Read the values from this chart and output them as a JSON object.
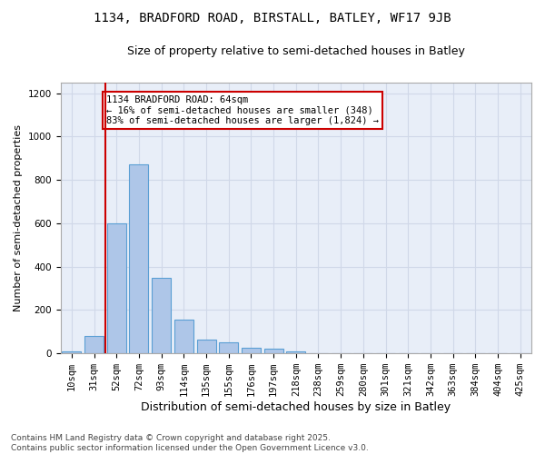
{
  "title1": "1134, BRADFORD ROAD, BIRSTALL, BATLEY, WF17 9JB",
  "title2": "Size of property relative to semi-detached houses in Batley",
  "xlabel": "Distribution of semi-detached houses by size in Batley",
  "ylabel": "Number of semi-detached properties",
  "categories": [
    "10sqm",
    "31sqm",
    "52sqm",
    "72sqm",
    "93sqm",
    "114sqm",
    "135sqm",
    "155sqm",
    "176sqm",
    "197sqm",
    "218sqm",
    "238sqm",
    "259sqm",
    "280sqm",
    "301sqm",
    "321sqm",
    "342sqm",
    "363sqm",
    "384sqm",
    "404sqm",
    "425sqm"
  ],
  "values": [
    10,
    80,
    600,
    870,
    350,
    155,
    65,
    50,
    25,
    20,
    10,
    0,
    0,
    0,
    0,
    0,
    0,
    0,
    0,
    0,
    0
  ],
  "bar_color": "#aec6e8",
  "bar_edge_color": "#5a9fd4",
  "vline_color": "#cc0000",
  "annotation_text": "1134 BRADFORD ROAD: 64sqm\n← 16% of semi-detached houses are smaller (348)\n83% of semi-detached houses are larger (1,824) →",
  "annotation_box_color": "#cc0000",
  "annotation_bg": "#ffffff",
  "ylim": [
    0,
    1250
  ],
  "yticks": [
    0,
    200,
    400,
    600,
    800,
    1000,
    1200
  ],
  "grid_color": "#d0d8e8",
  "bg_color": "#e8eef8",
  "footnote": "Contains HM Land Registry data © Crown copyright and database right 2025.\nContains public sector information licensed under the Open Government Licence v3.0.",
  "title1_fontsize": 10,
  "title2_fontsize": 9,
  "xlabel_fontsize": 9,
  "ylabel_fontsize": 8,
  "tick_fontsize": 7.5,
  "footnote_fontsize": 6.5
}
